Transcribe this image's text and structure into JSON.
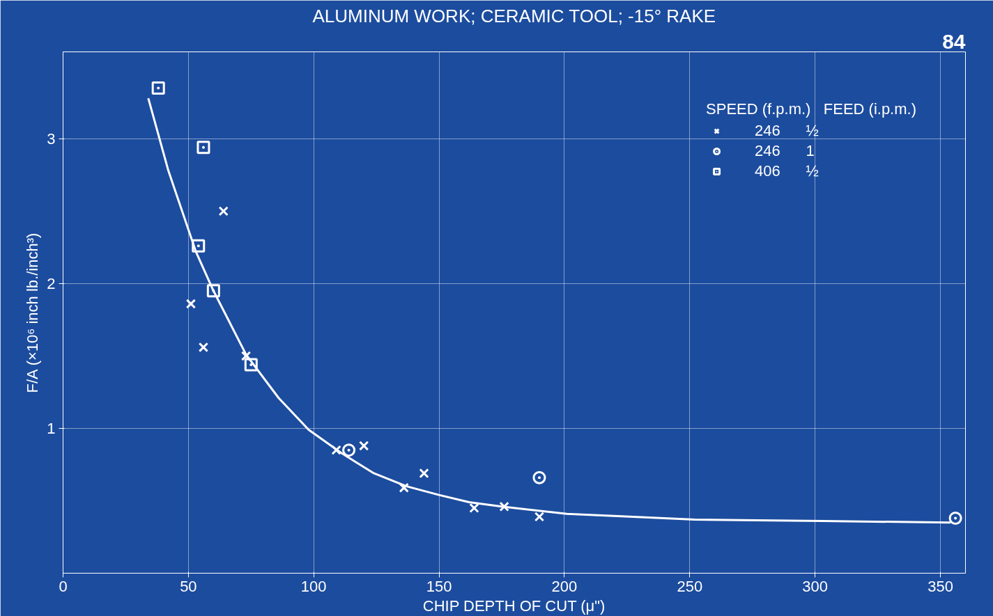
{
  "chart_data": {
    "type": "scatter",
    "title": "ALUMINUM WORK; CERAMIC TOOL; -15° RAKE",
    "xlabel": "CHIP DEPTH OF CUT (μ\")",
    "ylabel": "F/A (×10⁶ inch lb./inch³)",
    "legend_title": "SPEED (f.p.m.)   FEED (i.p.m.)",
    "legend": "top right",
    "grid": true,
    "xlim": [
      0,
      360
    ],
    "xticks": [
      0,
      50,
      100,
      150,
      200,
      250,
      300,
      350
    ],
    "ylim": [
      0,
      3.6
    ],
    "yticks": [
      1,
      2,
      3
    ],
    "annotations": [
      "84"
    ],
    "series": [
      {
        "name": "246      ½",
        "color": "#ffffff",
        "marker": "cross",
        "x": [
          64,
          51,
          56,
          73,
          109,
          120,
          144,
          136,
          164,
          176,
          190
        ],
        "values": [
          2.5,
          1.86,
          1.56,
          1.5,
          0.85,
          0.88,
          0.69,
          0.59,
          0.45,
          0.46,
          0.39
        ]
      },
      {
        "name": "246      1",
        "color": "#ffffff",
        "marker": "circle",
        "x": [
          114,
          190,
          356
        ],
        "values": [
          0.85,
          0.66,
          0.38
        ]
      },
      {
        "name": "406      ½",
        "color": "#ffffff",
        "marker": "square",
        "x": [
          38,
          56,
          54,
          60,
          75
        ],
        "values": [
          3.35,
          2.94,
          2.26,
          1.95,
          1.44
        ]
      },
      {
        "type": "line",
        "color": "#ffffff",
        "x": [
          34,
          42,
          53,
          60,
          73,
          86,
          98,
          111,
          124,
          137,
          150,
          162,
          175,
          201,
          226,
          252,
          303,
          354
        ],
        "values": [
          3.28,
          2.78,
          2.22,
          1.95,
          1.51,
          1.21,
          0.99,
          0.83,
          0.69,
          0.6,
          0.54,
          0.49,
          0.46,
          0.41,
          0.39,
          0.37,
          0.36,
          0.35
        ]
      }
    ]
  }
}
